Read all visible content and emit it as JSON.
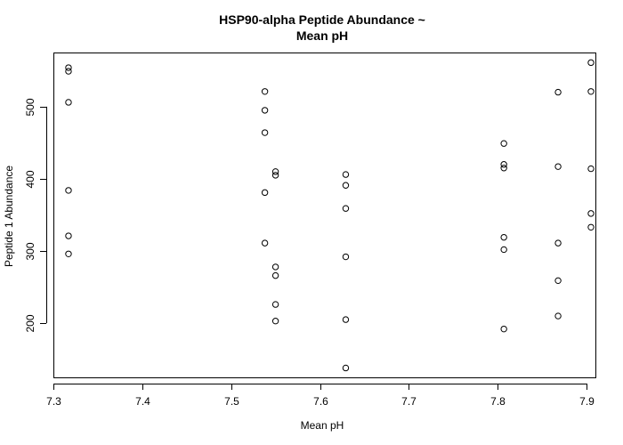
{
  "chart_data": {
    "type": "scatter",
    "title_lines": [
      "HSP90-alpha Peptide Abundance ~",
      "Mean pH"
    ],
    "xlabel": "Mean pH",
    "ylabel": "Peptide 1 Abundance",
    "xlim": [
      7.3,
      7.91
    ],
    "ylim": [
      125,
      575
    ],
    "x_ticks": [
      7.3,
      7.4,
      7.5,
      7.6,
      7.7,
      7.8,
      7.9
    ],
    "y_ticks": [
      200,
      300,
      400,
      500
    ],
    "grid": false,
    "legend": "none",
    "points": [
      [
        7.317,
        554
      ],
      [
        7.317,
        549
      ],
      [
        7.317,
        506
      ],
      [
        7.317,
        384
      ],
      [
        7.317,
        321
      ],
      [
        7.317,
        296
      ],
      [
        7.538,
        521
      ],
      [
        7.538,
        495
      ],
      [
        7.538,
        464
      ],
      [
        7.538,
        381
      ],
      [
        7.538,
        311
      ],
      [
        7.55,
        410
      ],
      [
        7.55,
        405
      ],
      [
        7.55,
        278
      ],
      [
        7.55,
        266
      ],
      [
        7.55,
        226
      ],
      [
        7.55,
        203
      ],
      [
        7.629,
        406
      ],
      [
        7.629,
        391
      ],
      [
        7.629,
        359
      ],
      [
        7.629,
        292
      ],
      [
        7.629,
        205
      ],
      [
        7.629,
        138
      ],
      [
        7.807,
        449
      ],
      [
        7.807,
        420
      ],
      [
        7.807,
        415
      ],
      [
        7.807,
        319
      ],
      [
        7.807,
        302
      ],
      [
        7.807,
        192
      ],
      [
        7.868,
        520
      ],
      [
        7.868,
        417
      ],
      [
        7.868,
        311
      ],
      [
        7.868,
        259
      ],
      [
        7.868,
        210
      ],
      [
        7.905,
        561
      ],
      [
        7.905,
        521
      ],
      [
        7.905,
        414
      ],
      [
        7.905,
        352
      ],
      [
        7.905,
        333
      ]
    ]
  }
}
